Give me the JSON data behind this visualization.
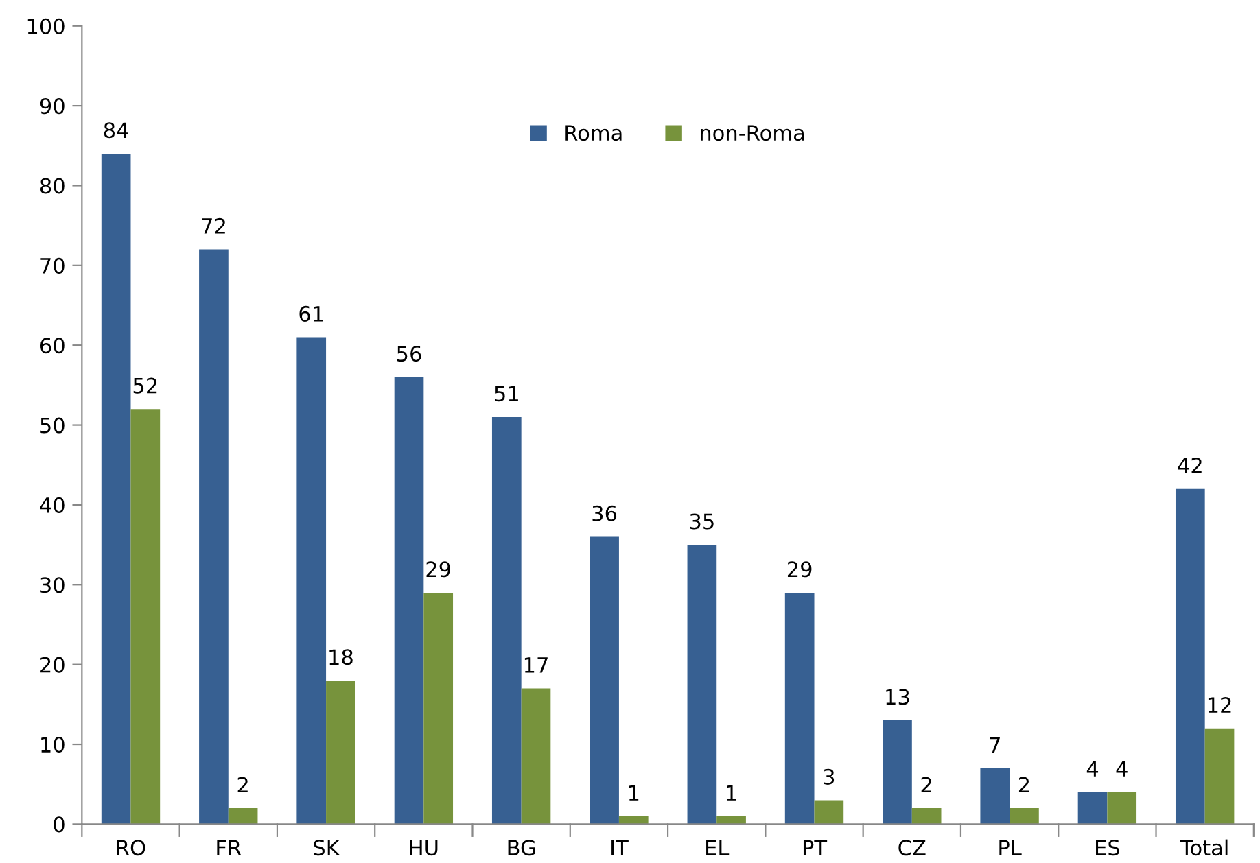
{
  "chart_data": {
    "type": "bar",
    "categories": [
      "RO",
      "FR",
      "SK",
      "HU",
      "BG",
      "IT",
      "EL",
      "PT",
      "CZ",
      "PL",
      "ES",
      "Total"
    ],
    "series": [
      {
        "name": "Roma",
        "color": "#376092",
        "values": [
          84,
          72,
          61,
          56,
          51,
          36,
          35,
          29,
          13,
          7,
          4,
          42
        ]
      },
      {
        "name": "non-Roma",
        "color": "#77933c",
        "values": [
          52,
          2,
          18,
          29,
          17,
          1,
          1,
          3,
          2,
          2,
          4,
          12
        ]
      }
    ],
    "ylim": [
      0,
      100
    ],
    "yticks": [
      0,
      10,
      20,
      30,
      40,
      50,
      60,
      70,
      80,
      90,
      100
    ],
    "data_labels": true,
    "grid": false,
    "legend": "top"
  }
}
